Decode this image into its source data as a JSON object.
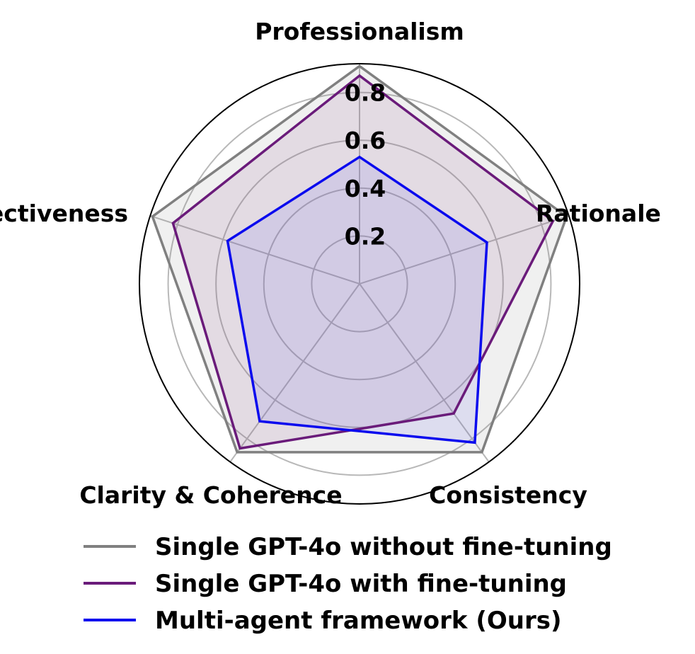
{
  "chart_data": {
    "type": "radar",
    "axes": [
      "Professionalism",
      "Rationale",
      "Consistency",
      "Clarity & Coherence",
      "Objectiveness"
    ],
    "rlim": [
      0,
      0.92
    ],
    "rticks": [
      0.2,
      0.4,
      0.6,
      0.8
    ],
    "rtick_labels": [
      "0.2",
      "0.4",
      "0.6",
      "0.8"
    ],
    "grid": true,
    "legend_position": "bottom",
    "series": [
      {
        "name": "Single GPT-4o without fine-tuning",
        "color": "#808080",
        "fill": "#808080",
        "values": [
          0.91,
          0.91,
          0.87,
          0.87,
          0.91
        ]
      },
      {
        "name": "Single GPT-4o with fine-tuning",
        "color": "#6a1b7a",
        "fill": "#8b4a8b",
        "values": [
          0.87,
          0.85,
          0.67,
          0.85,
          0.82
        ]
      },
      {
        "name": "Multi-agent framework (Ours)",
        "color": "#0a0aee",
        "fill": "#5a5aee",
        "values": [
          0.53,
          0.56,
          0.82,
          0.71,
          0.58
        ]
      }
    ]
  }
}
